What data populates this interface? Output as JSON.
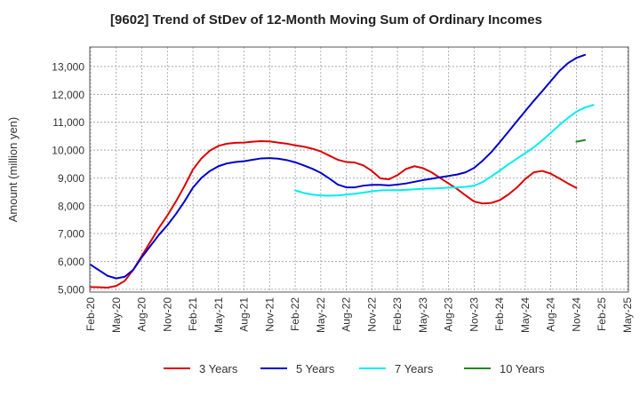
{
  "chart_data": {
    "type": "line",
    "title": "[9602]  Trend of StDev of 12-Month Moving Sum of Ordinary Incomes",
    "xlabel": "",
    "ylabel": "Amount (million yen)",
    "ylim": [
      4900,
      13700
    ],
    "yticks": [
      5000,
      6000,
      7000,
      8000,
      9000,
      10000,
      11000,
      12000,
      13000
    ],
    "ytick_labels": [
      "5,000",
      "6,000",
      "7,000",
      "8,000",
      "9,000",
      "10,000",
      "11,000",
      "12,000",
      "13,000"
    ],
    "xticks": [
      "Feb-20",
      "May-20",
      "Aug-20",
      "Nov-20",
      "Feb-21",
      "May-21",
      "Aug-21",
      "Nov-21",
      "Feb-22",
      "May-22",
      "Aug-22",
      "Nov-22",
      "Feb-23",
      "May-23",
      "Aug-23",
      "Nov-23",
      "Feb-24",
      "May-24",
      "Aug-24",
      "Nov-24",
      "Feb-25",
      "May-25"
    ],
    "grid": true,
    "legend_position": "bottom",
    "series": [
      {
        "name": "3 Years",
        "color": "#dd0000",
        "start_index": 0,
        "values": [
          5080,
          5070,
          5060,
          5120,
          5300,
          5700,
          6200,
          6700,
          7200,
          7650,
          8150,
          8700,
          9300,
          9700,
          9980,
          10150,
          10230,
          10260,
          10270,
          10300,
          10320,
          10310,
          10270,
          10230,
          10170,
          10120,
          10050,
          9950,
          9800,
          9650,
          9570,
          9550,
          9450,
          9250,
          8980,
          8950,
          9100,
          9320,
          9420,
          9350,
          9200,
          9000,
          8800,
          8600,
          8370,
          8150,
          8080,
          8100,
          8200,
          8400,
          8650,
          8960,
          9200,
          9250,
          9150,
          8980,
          8800,
          8640
        ]
      },
      {
        "name": "5 Years",
        "color": "#0000cc",
        "start_index": 0,
        "values": [
          5880,
          5680,
          5480,
          5390,
          5450,
          5700,
          6150,
          6550,
          6950,
          7300,
          7700,
          8150,
          8650,
          9000,
          9250,
          9420,
          9520,
          9570,
          9600,
          9650,
          9700,
          9710,
          9690,
          9640,
          9560,
          9450,
          9330,
          9180,
          8980,
          8760,
          8660,
          8660,
          8720,
          8750,
          8750,
          8730,
          8760,
          8800,
          8860,
          8920,
          8970,
          9020,
          9070,
          9120,
          9200,
          9360,
          9620,
          9920,
          10280,
          10650,
          11030,
          11400,
          11770,
          12120,
          12480,
          12840,
          13120,
          13310,
          13420
        ]
      },
      {
        "name": "7 Years",
        "color": "#00eeee",
        "start_index": 24,
        "values": [
          8550,
          8460,
          8400,
          8370,
          8360,
          8370,
          8400,
          8430,
          8470,
          8520,
          8550,
          8560,
          8560,
          8570,
          8590,
          8610,
          8620,
          8630,
          8650,
          8660,
          8680,
          8720,
          8850,
          9050,
          9260,
          9480,
          9690,
          9890,
          10100,
          10350,
          10620,
          10900,
          11150,
          11380,
          11530,
          11620
        ]
      },
      {
        "name": "10 Years",
        "color": "#228822",
        "start_index": 57,
        "values": [
          10300,
          10360
        ]
      }
    ]
  }
}
